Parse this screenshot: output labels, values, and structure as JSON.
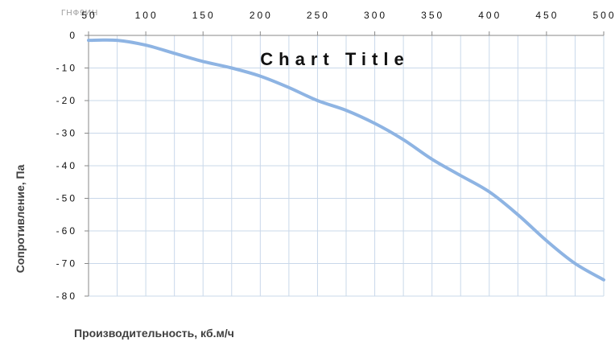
{
  "chart_data": {
    "type": "line",
    "title": "Chart Title",
    "xlabel": "Производительность, кб.м/ч",
    "ylabel": "Сопротивление, Па",
    "faint_label": "ГНФ9ИН",
    "x_tick_labels": [
      "50",
      "100",
      "150",
      "200",
      "250",
      "300",
      "350",
      "400",
      "450",
      "500"
    ],
    "y_tick_labels": [
      "0",
      "-10",
      "-20",
      "-30",
      "-40",
      "-50",
      "-60",
      "-70",
      "-80"
    ],
    "xlim": [
      50,
      500
    ],
    "ylim": [
      -80,
      0
    ],
    "grid": true,
    "line_color": "#8eb4e3",
    "grid_color": "#c9d8ea",
    "x": [
      50,
      75,
      100,
      125,
      150,
      175,
      200,
      225,
      250,
      275,
      300,
      325,
      350,
      375,
      400,
      425,
      450,
      475,
      500
    ],
    "y": [
      -1.5,
      -1.5,
      -3,
      -5.5,
      -8,
      -10,
      -12.5,
      -16,
      -20,
      -23,
      -27,
      -32,
      -38,
      -43,
      -48,
      -55,
      -63,
      -70,
      -75
    ]
  }
}
